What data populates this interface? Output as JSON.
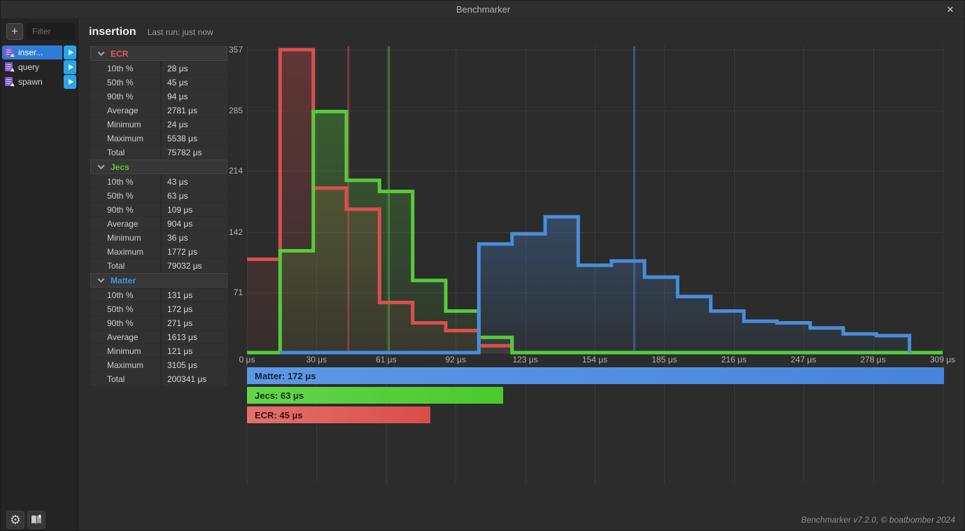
{
  "window": {
    "title": "Benchmarker",
    "close_glyph": "✕"
  },
  "sidebar": {
    "add_label": "+",
    "filter_placeholder": "Filter",
    "items": [
      {
        "label": "inser...",
        "selected": true
      },
      {
        "label": "query",
        "selected": false
      },
      {
        "label": "spawn",
        "selected": false
      }
    ]
  },
  "header": {
    "title": "insertion",
    "last_run": "Last run: just now"
  },
  "stats": {
    "row_labels": [
      "10th %",
      "50th %",
      "90th %",
      "Average",
      "Minimum",
      "Maximum",
      "Total"
    ],
    "sections": [
      {
        "name": "ECR",
        "color": "#e05a5a",
        "values": [
          "28 μs",
          "45 μs",
          "94 μs",
          "2781 μs",
          "24 μs",
          "5538 μs",
          "75782 μs"
        ]
      },
      {
        "name": "Jecs",
        "color": "#55cb38",
        "values": [
          "43 μs",
          "63 μs",
          "109 μs",
          "904 μs",
          "36 μs",
          "1772 μs",
          "79032 μs"
        ]
      },
      {
        "name": "Matter",
        "color": "#4596d9",
        "values": [
          "131 μs",
          "172 μs",
          "271 μs",
          "1613 μs",
          "121 μs",
          "3105 μs",
          "200341 μs"
        ]
      }
    ]
  },
  "chart_data": {
    "type": "step-histogram",
    "title": "",
    "x_unit": "μs",
    "x_range": [
      0,
      309
    ],
    "bins": 21,
    "bin_width_us": 14.71,
    "ylim": [
      0,
      357
    ],
    "y_ticks": [
      357,
      285,
      214,
      142,
      71
    ],
    "x_tick_labels": [
      "0 μs",
      "30 μs",
      "61 μs",
      "92 μs",
      "123 μs",
      "154 μs",
      "185 μs",
      "216 μs",
      "247 μs",
      "278 μs",
      "309 μs"
    ],
    "grid": true,
    "series": [
      {
        "name": "ECR",
        "color": "#da4f4c",
        "median_us": 45,
        "values": [
          110,
          357,
          194,
          169,
          59,
          35,
          26,
          8,
          0,
          0,
          0,
          0,
          0,
          0,
          0,
          0,
          0,
          0,
          0,
          0,
          0
        ],
        "draw_start_bin": 0,
        "draw_end_bin": 7
      },
      {
        "name": "Jecs",
        "color": "#55cb38",
        "median_us": 63,
        "values": [
          0,
          120,
          284,
          203,
          190,
          85,
          49,
          18,
          0,
          0,
          0,
          0,
          0,
          0,
          0,
          0,
          0,
          0,
          0,
          0,
          0
        ],
        "draw_start_bin": 0,
        "draw_end_bin": 20
      },
      {
        "name": "Matter",
        "color": "#4a8cdb",
        "median_us": 172,
        "values": [
          0,
          0,
          0,
          0,
          0,
          0,
          0,
          128,
          140,
          160,
          103,
          108,
          89,
          66,
          49,
          37,
          35,
          29,
          22,
          20,
          0
        ],
        "draw_start_bin": 1,
        "draw_end_bin": 19
      }
    ],
    "legend_position": "bottom",
    "legend": [
      {
        "label": "Matter: 172 μs",
        "value": 172,
        "color_start": "#5c99e5",
        "color_end": "#4785dc",
        "text_color": "#10233a"
      },
      {
        "label": "Jecs: 63 μs",
        "value": 63,
        "color_start": "#63d44c",
        "color_end": "#4bc92e",
        "text_color": "#123009"
      },
      {
        "label": "ECR: 45 μs",
        "value": 45,
        "color_start": "#e4716c",
        "color_end": "#d94d48",
        "text_color": "#3a0f0d"
      }
    ]
  },
  "footer": {
    "version": "Benchmarker v7.2.0, © boatbomber 2024"
  }
}
